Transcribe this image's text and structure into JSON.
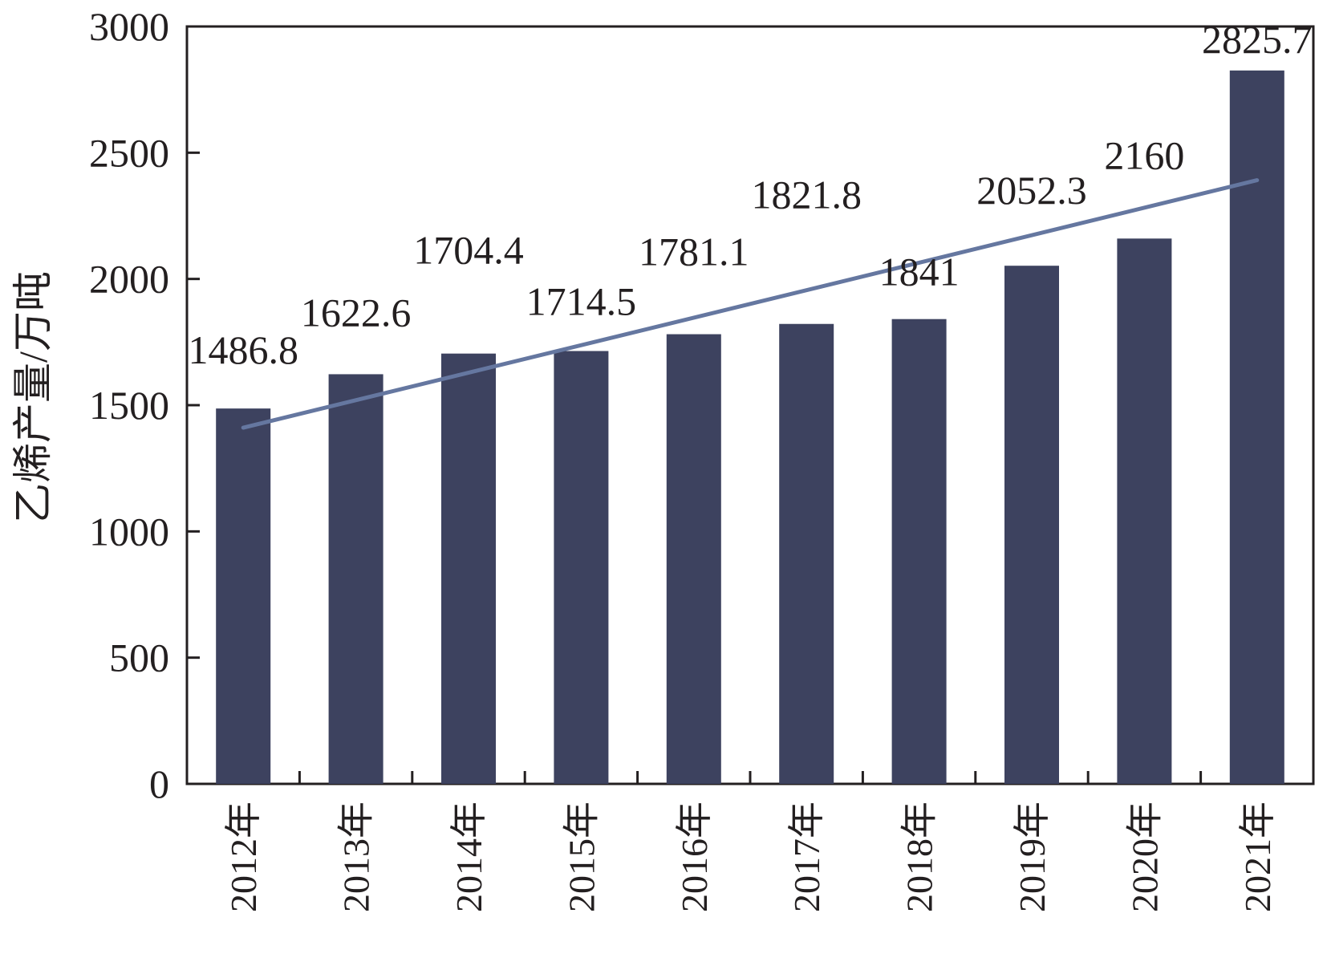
{
  "chart_data": {
    "type": "bar",
    "ylabel": "乙烯产量/万吨",
    "xlabel": "",
    "title": "",
    "ylim": [
      0,
      3000
    ],
    "yticks": [
      0,
      500,
      1000,
      1500,
      2000,
      2500,
      3000
    ],
    "grid": false,
    "categories": [
      "2012年",
      "2013年",
      "2014年",
      "2015年",
      "2016年",
      "2017年",
      "2018年",
      "2019年",
      "2020年",
      "2021年"
    ],
    "values": [
      1486.8,
      1622.6,
      1704.4,
      1714.5,
      1781.1,
      1821.8,
      1841,
      2052.3,
      2160,
      2825.7
    ],
    "value_labels": [
      "1486.8",
      "1622.6",
      "1704.4",
      "1714.5",
      "1781.1",
      "1821.8",
      "1841",
      "2052.3",
      "2160",
      "2825.7"
    ],
    "trendline": {
      "type": "linear",
      "color": "#6577a0"
    },
    "colors": {
      "bar": "#3d425f",
      "trendline": "#6577a0",
      "axis": "#231f20"
    }
  }
}
